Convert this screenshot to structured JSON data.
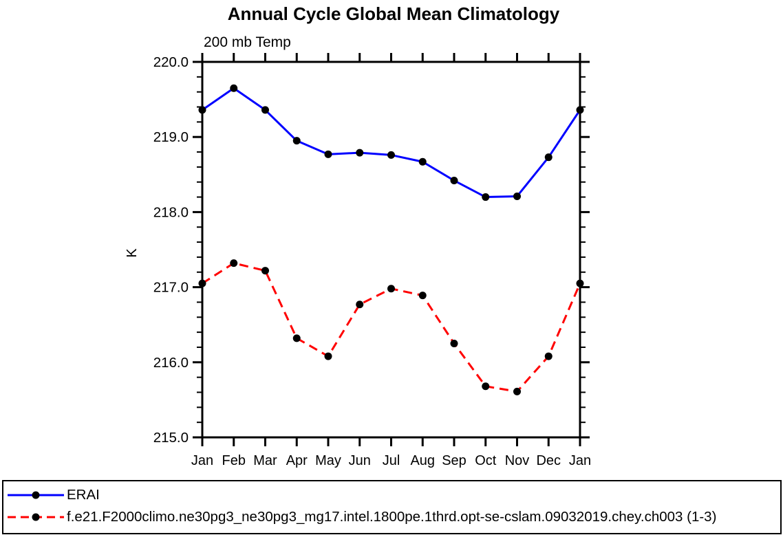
{
  "chart_data": {
    "type": "line",
    "title": "Annual Cycle Global Mean Climatology",
    "subtitle": "200 mb Temp",
    "ylabel": "K",
    "xlabel": "",
    "categories": [
      "Jan",
      "Feb",
      "Mar",
      "Apr",
      "May",
      "Jun",
      "Jul",
      "Aug",
      "Sep",
      "Oct",
      "Nov",
      "Dec",
      "Jan"
    ],
    "ylim": [
      215.0,
      220.0
    ],
    "y_tick_labels": [
      "215.0",
      "216.0",
      "217.0",
      "218.0",
      "219.0",
      "220.0"
    ],
    "y_major_step": 1.0,
    "y_minor_step": 0.2,
    "grid": false,
    "legend_position": "bottom-left-box",
    "axis_color": "#000000",
    "series": [
      {
        "name": "ERAI",
        "color": "#0000ff",
        "line_style": "solid",
        "marker": "filled-circle",
        "marker_color": "#000000",
        "values": [
          219.36,
          219.65,
          219.36,
          218.95,
          218.77,
          218.79,
          218.76,
          218.67,
          218.42,
          218.2,
          218.21,
          218.73,
          219.36
        ]
      },
      {
        "name": "f.e21.F2000climo.ne30pg3_ne30pg3_mg17.intel.1800pe.1thrd.opt-se-cslam.09032019.chey.ch003 (1-3)",
        "color": "#ff0000",
        "line_style": "dashed",
        "marker": "filled-circle",
        "marker_color": "#000000",
        "values": [
          217.05,
          217.32,
          217.22,
          216.32,
          216.08,
          216.77,
          216.98,
          216.89,
          216.25,
          215.68,
          215.61,
          216.08,
          217.05
        ]
      }
    ]
  }
}
